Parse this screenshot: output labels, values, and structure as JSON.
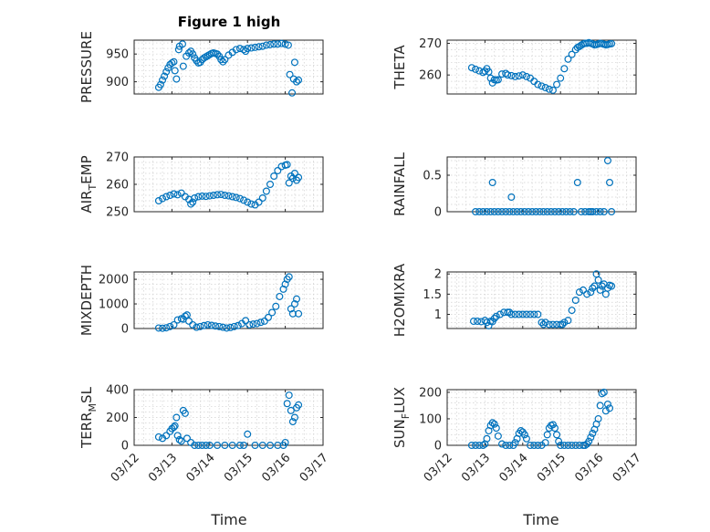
{
  "figure": {
    "title": "Figure 1 high",
    "xlabel": "Time",
    "point_color": "#0072bd",
    "x_ticks": [
      "03/12",
      "03/13",
      "03/14",
      "03/15",
      "03/16",
      "03/17"
    ]
  },
  "chart_data": [
    {
      "type": "scatter",
      "ylabel": "PRESSURE",
      "title": "Figure 1 high",
      "grid": true,
      "xlim": [
        "03/12",
        "03/17"
      ],
      "ylim": [
        878,
        975
      ],
      "yticks": [
        900,
        950
      ],
      "x": [
        12.65,
        12.7,
        12.75,
        12.8,
        12.85,
        12.9,
        12.95,
        13.0,
        13.05,
        13.08,
        13.12,
        13.18,
        13.2,
        13.28,
        13.3,
        13.38,
        13.45,
        13.5,
        13.55,
        13.6,
        13.65,
        13.7,
        13.75,
        13.8,
        13.85,
        13.9,
        13.95,
        14.0,
        14.05,
        14.1,
        14.15,
        14.2,
        14.25,
        14.3,
        14.35,
        14.4,
        14.5,
        14.6,
        14.7,
        14.8,
        14.9,
        14.95,
        15.0,
        15.1,
        15.2,
        15.3,
        15.4,
        15.5,
        15.6,
        15.7,
        15.8,
        15.9,
        16.0,
        16.08,
        16.12,
        16.18,
        16.22,
        16.25,
        16.3,
        16.35
      ],
      "y": [
        890,
        895,
        903,
        910,
        918,
        925,
        931,
        934,
        936,
        920,
        905,
        958,
        964,
        968,
        928,
        946,
        952,
        955,
        950,
        943,
        938,
        934,
        935,
        940,
        943,
        945,
        947,
        949,
        951,
        952,
        951,
        950,
        946,
        940,
        936,
        940,
        948,
        953,
        958,
        960,
        958,
        955,
        960,
        961,
        962,
        963,
        964,
        966,
        967,
        968,
        968,
        969,
        968,
        966,
        913,
        880,
        905,
        935,
        900,
        903
      ]
    },
    {
      "type": "scatter",
      "ylabel": "THETA",
      "grid": true,
      "xlim": [
        "03/12",
        "03/17"
      ],
      "ylim": [
        254,
        271
      ],
      "yticks": [
        260,
        270
      ],
      "x": [
        12.65,
        12.75,
        12.85,
        12.95,
        13.0,
        13.05,
        13.1,
        13.15,
        13.2,
        13.25,
        13.3,
        13.35,
        13.45,
        13.55,
        13.6,
        13.7,
        13.8,
        13.9,
        14.0,
        14.1,
        14.2,
        14.3,
        14.4,
        14.5,
        14.6,
        14.7,
        14.8,
        14.9,
        15.0,
        15.1,
        15.2,
        15.3,
        15.4,
        15.45,
        15.5,
        15.55,
        15.6,
        15.65,
        15.7,
        15.75,
        15.8,
        15.85,
        15.9,
        15.95,
        16.0,
        16.05,
        16.1,
        16.15,
        16.2,
        16.25,
        16.3,
        16.35
      ],
      "y": [
        262.3,
        261.8,
        261.3,
        260.8,
        261.2,
        262,
        261,
        259,
        257.5,
        258.5,
        258.4,
        258.5,
        260.3,
        260.5,
        260,
        259.8,
        259.5,
        259.7,
        260,
        259.5,
        259,
        258,
        257,
        256.5,
        256,
        255.5,
        255.2,
        257,
        259,
        262,
        265,
        266.5,
        268,
        268.7,
        269,
        269.4,
        269.8,
        270,
        270,
        270.2,
        270,
        269.8,
        269.5,
        269.6,
        269.8,
        270,
        269.9,
        269.7,
        269.5,
        269.6,
        269.8,
        269.9
      ]
    },
    {
      "type": "scatter",
      "ylabel": "AIR_TEMP",
      "grid": true,
      "xlim": [
        "03/12",
        "03/17"
      ],
      "ylim": [
        250,
        270
      ],
      "yticks": [
        250,
        260,
        270
      ],
      "x": [
        12.65,
        12.75,
        12.85,
        12.95,
        13.05,
        13.15,
        13.25,
        13.35,
        13.45,
        13.5,
        13.55,
        13.6,
        13.7,
        13.8,
        13.9,
        14.0,
        14.1,
        14.2,
        14.3,
        14.4,
        14.5,
        14.6,
        14.7,
        14.8,
        14.9,
        15.0,
        15.1,
        15.2,
        15.3,
        15.4,
        15.5,
        15.6,
        15.7,
        15.8,
        15.9,
        16.0,
        16.05,
        16.1,
        16.15,
        16.2,
        16.25,
        16.3,
        16.35
      ],
      "y": [
        254,
        254.8,
        255.5,
        256,
        256.5,
        256.2,
        256.8,
        255.5,
        254.5,
        252.8,
        253.5,
        255,
        255.5,
        255.7,
        255.6,
        255.8,
        256,
        256.2,
        256.3,
        256,
        255.8,
        255.5,
        255.2,
        254.8,
        254.2,
        253.5,
        252.8,
        252.5,
        253.5,
        255,
        257.5,
        260,
        263,
        265,
        266.5,
        267,
        267.2,
        260.5,
        263,
        262.2,
        264,
        261.5,
        262.5
      ]
    },
    {
      "type": "scatter",
      "ylabel": "RAINFALL",
      "grid": true,
      "xlim": [
        "03/12",
        "03/17"
      ],
      "ylim": [
        0,
        0.75
      ],
      "yticks": [
        0,
        0.5
      ],
      "x": [
        12.75,
        12.85,
        12.95,
        13.05,
        13.15,
        13.2,
        13.25,
        13.35,
        13.45,
        13.55,
        13.65,
        13.7,
        13.75,
        13.85,
        13.95,
        14.05,
        14.15,
        14.25,
        14.35,
        14.45,
        14.55,
        14.65,
        14.75,
        14.85,
        14.95,
        15.05,
        15.15,
        15.25,
        15.35,
        15.45,
        15.55,
        15.65,
        15.75,
        15.8,
        15.85,
        15.95,
        16.05,
        16.15,
        16.25,
        16.3,
        16.35
      ],
      "y": [
        0,
        0,
        0,
        0,
        0,
        0.4,
        0,
        0,
        0,
        0,
        0,
        0.2,
        0,
        0,
        0,
        0,
        0,
        0,
        0,
        0,
        0,
        0,
        0,
        0,
        0,
        0,
        0,
        0,
        0,
        0.4,
        0,
        0,
        0,
        0,
        0,
        0,
        0,
        0,
        0.7,
        0.4,
        0
      ]
    },
    {
      "type": "scatter",
      "ylabel": "MIXDEPTH",
      "grid": true,
      "xlim": [
        "03/12",
        "03/17"
      ],
      "ylim": [
        0,
        2300
      ],
      "yticks": [
        0,
        1000,
        2000
      ],
      "x": [
        12.65,
        12.75,
        12.85,
        12.95,
        13.05,
        13.15,
        13.25,
        13.3,
        13.35,
        13.4,
        13.45,
        13.55,
        13.65,
        13.75,
        13.85,
        13.95,
        14.05,
        14.15,
        14.25,
        14.35,
        14.45,
        14.55,
        14.65,
        14.75,
        14.85,
        14.95,
        15.05,
        15.15,
        15.25,
        15.35,
        15.45,
        15.55,
        15.65,
        15.75,
        15.85,
        15.95,
        16.0,
        16.05,
        16.1,
        16.15,
        16.2,
        16.25,
        16.3,
        16.35
      ],
      "y": [
        20,
        10,
        30,
        80,
        150,
        350,
        400,
        380,
        500,
        550,
        300,
        150,
        50,
        80,
        120,
        150,
        130,
        100,
        80,
        50,
        20,
        40,
        80,
        120,
        200,
        320,
        150,
        180,
        200,
        250,
        300,
        450,
        650,
        900,
        1300,
        1600,
        1800,
        2000,
        2100,
        800,
        600,
        1000,
        1200,
        600
      ]
    },
    {
      "type": "scatter",
      "ylabel": "H2OMIXRA",
      "grid": true,
      "xlim": [
        "03/12",
        "03/17"
      ],
      "ylim": [
        0.65,
        2.05
      ],
      "yticks": [
        1,
        1.5,
        2
      ],
      "x": [
        12.7,
        12.8,
        12.9,
        13.0,
        13.05,
        13.1,
        13.15,
        13.2,
        13.25,
        13.3,
        13.4,
        13.5,
        13.6,
        13.65,
        13.7,
        13.8,
        13.9,
        14.0,
        14.1,
        14.2,
        14.3,
        14.4,
        14.5,
        14.55,
        14.6,
        14.7,
        14.8,
        14.9,
        15.0,
        15.05,
        15.1,
        15.2,
        15.3,
        15.4,
        15.5,
        15.6,
        15.7,
        15.8,
        15.85,
        15.9,
        15.95,
        16.0,
        16.05,
        16.1,
        16.15,
        16.2,
        16.25,
        16.3,
        16.35
      ],
      "y": [
        0.83,
        0.83,
        0.82,
        0.85,
        0.8,
        0.72,
        0.83,
        0.82,
        0.9,
        0.95,
        1.0,
        1.05,
        1.05,
        1.05,
        1.0,
        1.0,
        1.0,
        1.0,
        1.0,
        1.0,
        1.0,
        1.0,
        0.8,
        0.75,
        0.8,
        0.75,
        0.75,
        0.75,
        0.75,
        0.75,
        0.8,
        0.85,
        1.1,
        1.35,
        1.55,
        1.6,
        1.5,
        1.55,
        1.65,
        1.7,
        2.0,
        1.85,
        1.6,
        1.7,
        1.75,
        1.5,
        1.65,
        1.72,
        1.7
      ]
    },
    {
      "type": "scatter",
      "ylabel": "TERR_MSL",
      "grid": true,
      "xlim": [
        "03/12",
        "03/17"
      ],
      "ylim": [
        0,
        400
      ],
      "yticks": [
        0,
        200,
        400
      ],
      "x": [
        12.65,
        12.75,
        12.85,
        12.95,
        13.0,
        13.05,
        13.08,
        13.12,
        13.15,
        13.2,
        13.25,
        13.3,
        13.35,
        13.4,
        13.5,
        13.6,
        13.7,
        13.8,
        13.9,
        14.0,
        14.2,
        14.4,
        14.6,
        14.8,
        14.9,
        15.0,
        15.2,
        15.4,
        15.6,
        15.8,
        15.95,
        16.0,
        16.05,
        16.1,
        16.15,
        16.2,
        16.25,
        16.3,
        16.35
      ],
      "y": [
        60,
        50,
        70,
        100,
        120,
        130,
        140,
        200,
        70,
        40,
        30,
        250,
        230,
        50,
        20,
        0,
        0,
        0,
        0,
        0,
        0,
        0,
        0,
        0,
        0,
        80,
        0,
        0,
        0,
        0,
        0,
        20,
        300,
        360,
        250,
        170,
        200,
        270,
        290
      ]
    },
    {
      "type": "scatter",
      "ylabel": "SUN_FLUX",
      "grid": true,
      "xlim": [
        "03/12",
        "03/17"
      ],
      "ylim": [
        0,
        210
      ],
      "yticks": [
        0,
        100,
        200
      ],
      "x": [
        12.65,
        12.75,
        12.85,
        12.95,
        13.0,
        13.05,
        13.1,
        13.15,
        13.2,
        13.25,
        13.3,
        13.35,
        13.45,
        13.55,
        13.65,
        13.75,
        13.8,
        13.85,
        13.9,
        13.95,
        14.0,
        14.05,
        14.1,
        14.2,
        14.3,
        14.4,
        14.5,
        14.6,
        14.65,
        14.7,
        14.75,
        14.8,
        14.85,
        14.9,
        14.95,
        15.0,
        15.1,
        15.2,
        15.3,
        15.4,
        15.5,
        15.6,
        15.65,
        15.7,
        15.75,
        15.8,
        15.85,
        15.9,
        15.95,
        16.0,
        16.05,
        16.1,
        16.15,
        16.2,
        16.25,
        16.3
      ],
      "y": [
        0,
        0,
        0,
        0,
        5,
        25,
        55,
        75,
        85,
        80,
        65,
        35,
        5,
        0,
        0,
        0,
        10,
        25,
        45,
        55,
        50,
        40,
        25,
        0,
        0,
        0,
        0,
        10,
        40,
        65,
        75,
        78,
        65,
        40,
        15,
        0,
        0,
        0,
        0,
        0,
        0,
        0,
        0,
        5,
        15,
        30,
        45,
        60,
        80,
        100,
        150,
        195,
        200,
        130,
        155,
        140
      ]
    }
  ]
}
